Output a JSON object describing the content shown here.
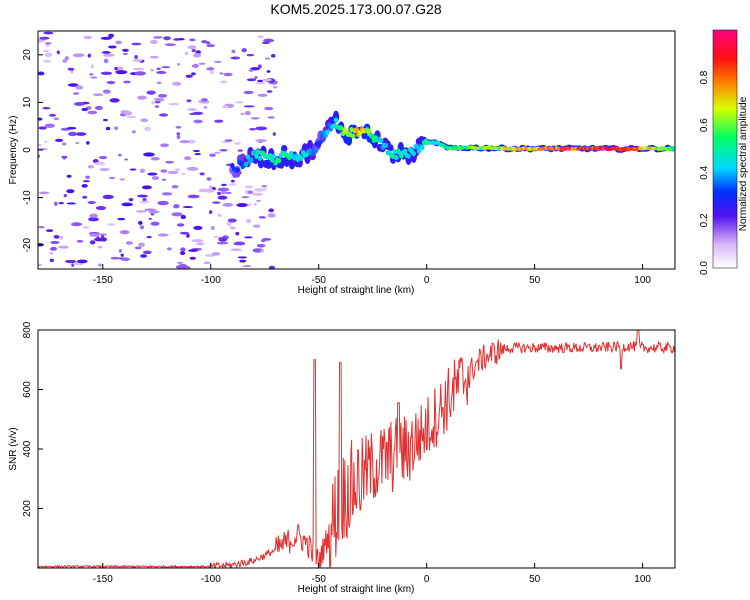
{
  "figure_title": "KOM5.2025.173.00.07.G28",
  "chart_data": [
    {
      "type": "heatmap",
      "title": "KOM5.2025.173.00.07.G28",
      "xlabel": "Height of straight line (km)",
      "ylabel": "Frequency (Hz)",
      "xlim": [
        -180,
        115
      ],
      "ylim": [
        -25,
        25
      ],
      "x_ticks": [
        -150,
        -100,
        -50,
        0,
        50,
        100
      ],
      "y_ticks": [
        -20,
        -10,
        0,
        10,
        20
      ],
      "colorbar": {
        "label": "Normalized spectral amplitude",
        "range": [
          0,
          1
        ],
        "ticks": [
          0.0,
          0.2,
          0.4,
          0.6,
          0.8
        ]
      },
      "ridge": {
        "x": [
          -90,
          -85,
          -80,
          -75,
          -70,
          -65,
          -60,
          -55,
          -50,
          -48,
          -45,
          -42,
          -40,
          -38,
          -35,
          -30,
          -25,
          -20,
          -15,
          -10,
          -5,
          0,
          5,
          10,
          20,
          30,
          40,
          50,
          60,
          70,
          80,
          90,
          100,
          110,
          115
        ],
        "y": [
          -4,
          -3,
          -1,
          -1.5,
          -2,
          -1,
          -2,
          -0.5,
          1,
          3,
          5,
          6,
          5,
          3.5,
          3.5,
          4,
          3,
          1,
          -1,
          -1,
          0,
          1.5,
          1.5,
          0.3,
          0.5,
          0.4,
          0.3,
          0.3,
          0.3,
          0.3,
          0.3,
          0.2,
          0.3,
          0.3,
          0.3
        ],
        "amplitude": [
          0.3,
          0.35,
          0.45,
          0.5,
          0.5,
          0.5,
          0.45,
          0.45,
          0.3,
          0.35,
          0.4,
          0.5,
          0.5,
          0.6,
          0.7,
          0.7,
          0.55,
          0.4,
          0.5,
          0.5,
          0.4,
          0.5,
          0.5,
          0.55,
          0.6,
          0.6,
          0.7,
          0.75,
          0.8,
          0.85,
          0.9,
          0.95,
          0.75,
          0.6,
          0.5
        ]
      },
      "noise_region_x": [
        -180,
        -80
      ]
    },
    {
      "type": "line",
      "xlabel": "Height of straight line (km)",
      "ylabel": "SNR (v/v)",
      "xlim": [
        -180,
        115
      ],
      "ylim": [
        0,
        800
      ],
      "x_ticks": [
        -150,
        -100,
        -50,
        0,
        50,
        100
      ],
      "y_ticks": [
        200,
        400,
        600,
        800
      ],
      "line_color": "#e03030",
      "trend": {
        "x": [
          -180,
          -120,
          -100,
          -90,
          -80,
          -70,
          -60,
          -55,
          -50,
          -45,
          -40,
          -35,
          -30,
          -25,
          -20,
          -15,
          -10,
          -5,
          0,
          5,
          10,
          15,
          20,
          25,
          30,
          35,
          40,
          50,
          60,
          70,
          80,
          90,
          95,
          100,
          105,
          115
        ],
        "y": [
          5,
          5,
          5,
          10,
          25,
          60,
          110,
          80,
          20,
          120,
          230,
          270,
          310,
          340,
          360,
          380,
          390,
          430,
          470,
          520,
          570,
          620,
          660,
          700,
          720,
          735,
          740,
          740,
          740,
          740,
          740,
          745,
          745,
          740,
          740,
          740
        ]
      },
      "spikes": [
        {
          "x": -52,
          "y": 700
        },
        {
          "x": -40,
          "y": 690
        },
        {
          "x": -13,
          "y": 555
        },
        {
          "x": 90,
          "y": 670
        },
        {
          "x": 98,
          "y": 800
        }
      ]
    }
  ]
}
